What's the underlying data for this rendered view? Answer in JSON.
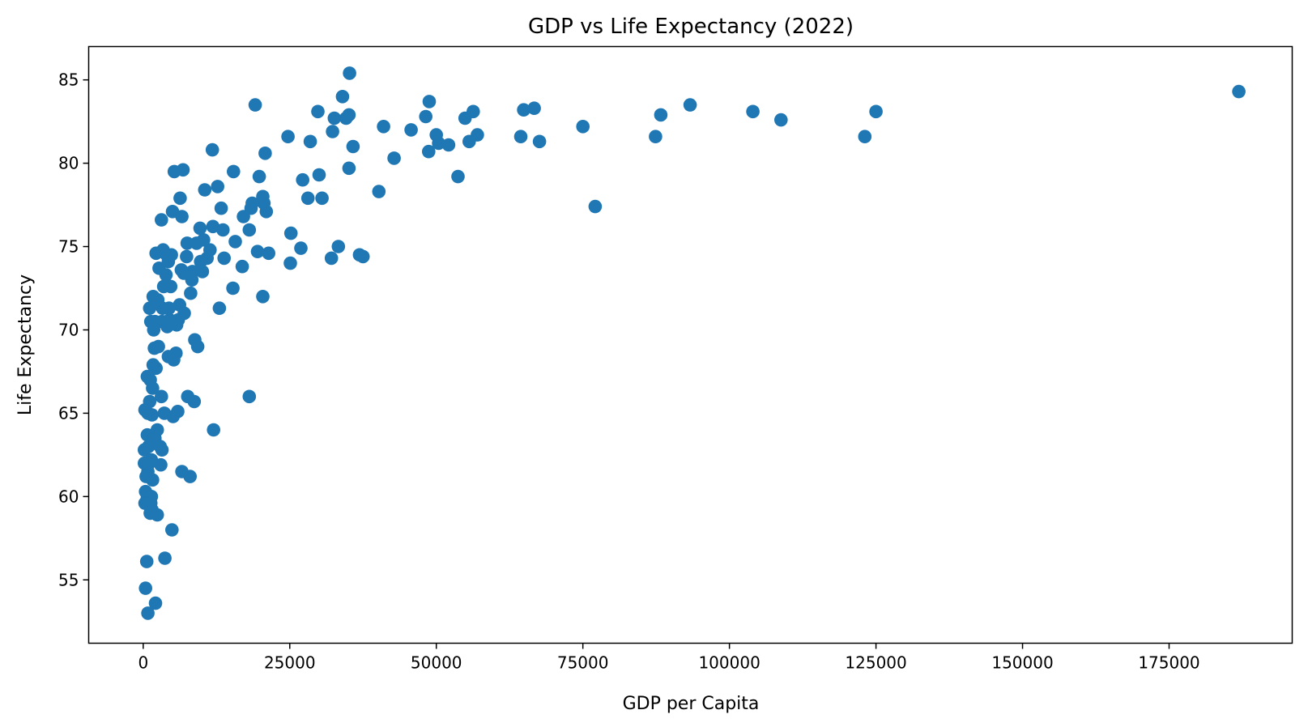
{
  "chart_data": {
    "type": "scatter",
    "title": "GDP vs Life Expectancy (2022)",
    "xlabel": "GDP per Capita",
    "ylabel": "Life Expectancy",
    "xlim": [
      -9300,
      196000
    ],
    "ylim": [
      51.2,
      87.0
    ],
    "xticks": [
      0,
      25000,
      50000,
      75000,
      100000,
      125000,
      150000,
      175000
    ],
    "xtick_labels": [
      "0",
      "25000",
      "50000",
      "75000",
      "100000",
      "125000",
      "150000",
      "175000"
    ],
    "yticks": [
      55,
      60,
      65,
      70,
      75,
      80,
      85
    ],
    "ytick_labels": [
      "55",
      "60",
      "65",
      "70",
      "75",
      "80",
      "85"
    ],
    "grid": false,
    "marker_color": "#1f77b4",
    "points": [
      [
        186900,
        84.3
      ],
      [
        125000,
        83.1
      ],
      [
        123100,
        81.6
      ],
      [
        108800,
        82.6
      ],
      [
        104000,
        83.1
      ],
      [
        93300,
        83.5
      ],
      [
        88300,
        82.9
      ],
      [
        87400,
        81.6
      ],
      [
        77100,
        77.4
      ],
      [
        75000,
        82.2
      ],
      [
        67600,
        81.3
      ],
      [
        66700,
        83.3
      ],
      [
        64900,
        83.2
      ],
      [
        64400,
        81.6
      ],
      [
        57000,
        81.7
      ],
      [
        56300,
        83.1
      ],
      [
        55600,
        81.3
      ],
      [
        54900,
        82.7
      ],
      [
        53700,
        79.2
      ],
      [
        52100,
        81.1
      ],
      [
        50400,
        81.2
      ],
      [
        50000,
        81.7
      ],
      [
        48800,
        83.7
      ],
      [
        48700,
        80.7
      ],
      [
        48200,
        82.8
      ],
      [
        45700,
        82.0
      ],
      [
        42800,
        80.3
      ],
      [
        41000,
        82.2
      ],
      [
        40200,
        78.3
      ],
      [
        37500,
        74.4
      ],
      [
        36900,
        74.5
      ],
      [
        35800,
        81.0
      ],
      [
        35200,
        85.4
      ],
      [
        35100,
        79.7
      ],
      [
        35100,
        82.9
      ],
      [
        34600,
        82.7
      ],
      [
        34000,
        84.0
      ],
      [
        33300,
        75.0
      ],
      [
        32600,
        82.7
      ],
      [
        32300,
        81.9
      ],
      [
        32100,
        74.3
      ],
      [
        30500,
        77.9
      ],
      [
        30000,
        79.3
      ],
      [
        29800,
        83.1
      ],
      [
        28500,
        81.3
      ],
      [
        28100,
        77.9
      ],
      [
        27200,
        79.0
      ],
      [
        26900,
        74.9
      ],
      [
        25200,
        75.8
      ],
      [
        25100,
        74.0
      ],
      [
        24700,
        81.6
      ],
      [
        21400,
        74.6
      ],
      [
        21000,
        77.1
      ],
      [
        20800,
        80.6
      ],
      [
        20600,
        77.6
      ],
      [
        20400,
        78.0
      ],
      [
        20400,
        72.0
      ],
      [
        19800,
        79.2
      ],
      [
        19500,
        74.7
      ],
      [
        19100,
        83.5
      ],
      [
        18600,
        77.6
      ],
      [
        18400,
        77.3
      ],
      [
        18100,
        76.0
      ],
      [
        18100,
        66.0
      ],
      [
        17100,
        76.8
      ],
      [
        16900,
        73.8
      ],
      [
        15700,
        75.3
      ],
      [
        15400,
        79.5
      ],
      [
        15300,
        72.5
      ],
      [
        13800,
        74.3
      ],
      [
        13600,
        76.0
      ],
      [
        13300,
        77.3
      ],
      [
        13000,
        71.3
      ],
      [
        12700,
        78.6
      ],
      [
        12000,
        64.0
      ],
      [
        11900,
        76.2
      ],
      [
        11800,
        80.8
      ],
      [
        11400,
        74.8
      ],
      [
        10900,
        74.3
      ],
      [
        10500,
        78.4
      ],
      [
        10300,
        75.4
      ],
      [
        10100,
        73.5
      ],
      [
        9800,
        74.1
      ],
      [
        9700,
        76.1
      ],
      [
        9300,
        69.0
      ],
      [
        9100,
        75.2
      ],
      [
        8800,
        69.4
      ],
      [
        8700,
        65.7
      ],
      [
        8400,
        73.5
      ],
      [
        8300,
        73.0
      ],
      [
        8100,
        72.2
      ],
      [
        8000,
        61.2
      ],
      [
        7800,
        73.4
      ],
      [
        7600,
        66.0
      ],
      [
        7500,
        75.2
      ],
      [
        7400,
        74.4
      ],
      [
        7000,
        71.0
      ],
      [
        6900,
        73.4
      ],
      [
        6800,
        79.6
      ],
      [
        6600,
        76.8
      ],
      [
        6600,
        61.5
      ],
      [
        6500,
        73.6
      ],
      [
        6300,
        77.9
      ],
      [
        6200,
        71.5
      ],
      [
        6000,
        70.6
      ],
      [
        5900,
        65.1
      ],
      [
        5700,
        70.3
      ],
      [
        5600,
        68.6
      ],
      [
        5300,
        79.5
      ],
      [
        5200,
        68.2
      ],
      [
        5100,
        64.8
      ],
      [
        5000,
        77.1
      ],
      [
        4900,
        58.0
      ],
      [
        4800,
        74.5
      ],
      [
        4700,
        72.6
      ],
      [
        4500,
        70.6
      ],
      [
        4400,
        71.3
      ],
      [
        4300,
        68.4
      ],
      [
        4300,
        74.1
      ],
      [
        4100,
        70.2
      ],
      [
        4000,
        74.5
      ],
      [
        3900,
        73.3
      ],
      [
        3700,
        56.3
      ],
      [
        3600,
        65.0
      ],
      [
        3500,
        72.6
      ],
      [
        3400,
        74.8
      ],
      [
        3300,
        71.3
      ],
      [
        3200,
        70.5
      ],
      [
        3200,
        62.8
      ],
      [
        3100,
        66.0
      ],
      [
        3100,
        76.6
      ],
      [
        3000,
        61.9
      ],
      [
        2900,
        63.0
      ],
      [
        2700,
        73.7
      ],
      [
        2600,
        69.0
      ],
      [
        2500,
        71.8
      ],
      [
        2400,
        58.9
      ],
      [
        2400,
        64.0
      ],
      [
        2200,
        74.6
      ],
      [
        2200,
        67.7
      ],
      [
        2100,
        53.6
      ],
      [
        2000,
        70.5
      ],
      [
        2000,
        63.5
      ],
      [
        1900,
        68.9
      ],
      [
        1800,
        70.0
      ],
      [
        1700,
        72.0
      ],
      [
        1700,
        67.9
      ],
      [
        1600,
        66.5
      ],
      [
        1600,
        61.0
      ],
      [
        1500,
        59.2
      ],
      [
        1500,
        64.9
      ],
      [
        1400,
        60.0
      ],
      [
        1400,
        62.2
      ],
      [
        1300,
        70.5
      ],
      [
        1300,
        59.6
      ],
      [
        1200,
        67.0
      ],
      [
        1100,
        65.7
      ],
      [
        1100,
        71.3
      ],
      [
        1000,
        62.0
      ],
      [
        900,
        63.0
      ],
      [
        800,
        61.5
      ],
      [
        800,
        65.0
      ],
      [
        800,
        53.0
      ],
      [
        700,
        63.7
      ],
      [
        700,
        67.2
      ],
      [
        700,
        59.9
      ],
      [
        600,
        56.1
      ],
      [
        500,
        61.2
      ],
      [
        400,
        54.5
      ],
      [
        400,
        60.3
      ],
      [
        300,
        59.6
      ],
      [
        300,
        65.2
      ],
      [
        200,
        62.0
      ],
      [
        200,
        62.8
      ],
      [
        1200,
        59.0
      ]
    ]
  }
}
